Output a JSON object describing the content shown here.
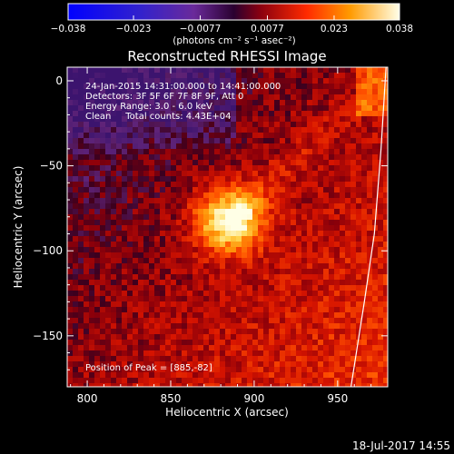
{
  "chart_data": {
    "type": "heatmap",
    "title": "Reconstructed RHESSI Image",
    "xlabel": "Heliocentric X (arcsec)",
    "ylabel": "Heliocentric Y (arcsec)",
    "xlim": [
      788,
      980
    ],
    "ylim": [
      -180,
      8
    ],
    "xticks": [
      800,
      850,
      900,
      950
    ],
    "yticks": [
      0,
      -50,
      -100,
      -150
    ],
    "colorbar": {
      "min": -0.038,
      "max": 0.038,
      "tick_values": [
        -0.038,
        -0.023,
        -0.0077,
        0.0077,
        0.023,
        0.038
      ],
      "tick_labels": [
        "−0.038",
        "−0.023",
        "−0.0077",
        "0.0077",
        "0.023",
        "0.038"
      ],
      "unit_label": "(photons cm⁻² s⁻¹ asec⁻²)"
    },
    "annotations": [
      "24-Jan-2015 14:31:00.000 to 14:41:00.000",
      "Detectors: 3F 5F 6F 7F 8F 9F, Att 0",
      "Energy Range: 3.0 - 6.0 keV",
      "Clean     Total counts: 4.43E+04"
    ],
    "peak_label": "Position of Peak = [885,-82]",
    "peak": {
      "x": 885,
      "y": -82
    },
    "limb_curve": [
      [
        979,
        8
      ],
      [
        976,
        -40
      ],
      [
        972,
        -90
      ],
      [
        966,
        -130
      ],
      [
        958,
        -180
      ]
    ],
    "timestamp": "18-Jul-2017 14:55"
  }
}
